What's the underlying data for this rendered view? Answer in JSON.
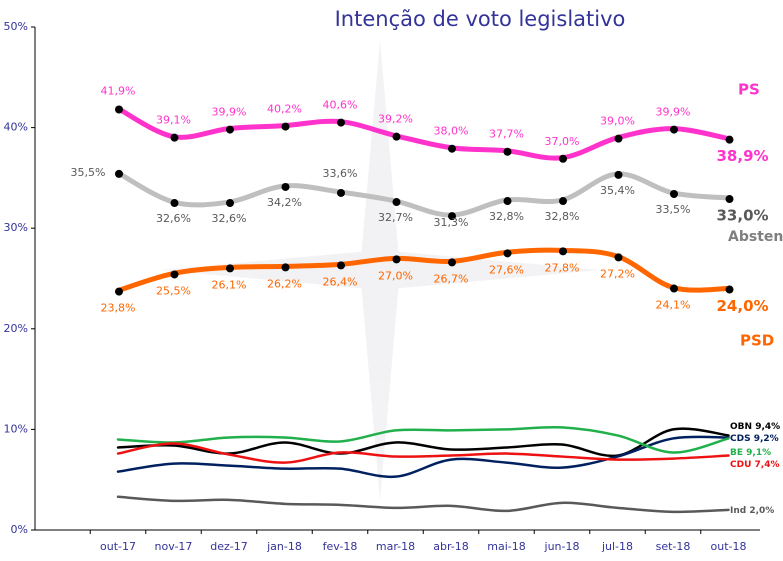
{
  "chart_data": {
    "type": "line",
    "title": "Intenção de voto legislativo",
    "categories": [
      "out-17",
      "nov-17",
      "dez-17",
      "jan-18",
      "fev-18",
      "mar-18",
      "abr-18",
      "mai-18",
      "jun-18",
      "jul-18",
      "set-18",
      "out-18"
    ],
    "ylim": [
      0,
      50
    ],
    "yticks": [
      {
        "value": 0,
        "label": "0%"
      },
      {
        "value": 10,
        "label": "10%"
      },
      {
        "value": 20,
        "label": "20%"
      },
      {
        "value": 30,
        "label": "30%"
      },
      {
        "value": 40,
        "label": "40%"
      },
      {
        "value": 50,
        "label": "50%"
      }
    ],
    "series": [
      {
        "name": "PS",
        "color": "#ff33cc",
        "values": [
          41.9,
          39.1,
          39.9,
          40.2,
          40.6,
          39.2,
          38.0,
          37.7,
          37.0,
          39.0,
          39.9,
          38.9
        ],
        "value_labels": [
          "41,9%",
          "39,1%",
          "39,9%",
          "40,2%",
          "40,6%",
          "39,2%",
          "38,0%",
          "37,7%",
          "37,0%",
          "39,0%",
          "39,9%",
          "38,9%"
        ]
      },
      {
        "name": "Abstenção",
        "color": "#bfbfbf",
        "values": [
          35.5,
          32.6,
          32.6,
          34.2,
          33.6,
          32.7,
          31.3,
          32.8,
          32.8,
          35.4,
          33.5,
          33.0
        ],
        "value_labels": [
          "35,5%",
          "32,6%",
          "32,6%",
          "34,2%",
          "33,6%",
          "32,7%",
          "31,3%",
          "32,8%",
          "32,8%",
          "35,4%",
          "33,5%",
          "33,0%"
        ]
      },
      {
        "name": "PSD",
        "color": "#ff6600",
        "values": [
          23.8,
          25.5,
          26.1,
          26.2,
          26.4,
          27.0,
          26.7,
          27.6,
          27.8,
          27.2,
          24.1,
          24.0
        ],
        "value_labels": [
          "23,8%",
          "25,5%",
          "26,1%",
          "26,2%",
          "26,4%",
          "27,0%",
          "26,7%",
          "27,6%",
          "27,8%",
          "27,2%",
          "24,1%",
          "24,0%"
        ]
      },
      {
        "name": "OBN",
        "color": "#000000",
        "values": [
          8.2,
          8.4,
          7.6,
          8.7,
          7.6,
          8.7,
          8.0,
          8.2,
          8.5,
          7.4,
          10.0,
          9.4
        ],
        "value_labels": [
          null,
          null,
          null,
          null,
          null,
          null,
          null,
          null,
          null,
          null,
          null,
          "9,4%"
        ]
      },
      {
        "name": "CDS",
        "color": "#002060",
        "values": [
          5.8,
          6.6,
          6.4,
          6.1,
          6.1,
          5.3,
          7.0,
          6.7,
          6.2,
          7.3,
          9.1,
          9.2
        ],
        "value_labels": [
          null,
          null,
          null,
          null,
          null,
          null,
          null,
          null,
          null,
          null,
          null,
          "9,2%"
        ]
      },
      {
        "name": "BE",
        "color": "#21b04b",
        "values": [
          9.0,
          8.7,
          9.2,
          9.2,
          8.8,
          9.9,
          9.9,
          10.0,
          10.2,
          9.4,
          7.7,
          9.1
        ],
        "value_labels": [
          null,
          null,
          null,
          null,
          null,
          null,
          null,
          null,
          null,
          null,
          null,
          "9,1%"
        ]
      },
      {
        "name": "CDU",
        "color": "#ee1111",
        "values": [
          7.6,
          8.6,
          7.5,
          6.7,
          7.7,
          7.3,
          7.4,
          7.6,
          7.3,
          7.0,
          7.1,
          7.4
        ],
        "value_labels": [
          null,
          null,
          null,
          null,
          null,
          null,
          null,
          null,
          null,
          null,
          null,
          "7,4%"
        ]
      },
      {
        "name": "Ind",
        "color": "#595959",
        "values": [
          3.3,
          2.9,
          3.0,
          2.6,
          2.5,
          2.2,
          2.4,
          1.9,
          2.7,
          2.2,
          1.8,
          2.0
        ],
        "value_labels": [
          null,
          null,
          null,
          null,
          null,
          null,
          null,
          null,
          null,
          null,
          null,
          "2,0%"
        ]
      }
    ]
  }
}
